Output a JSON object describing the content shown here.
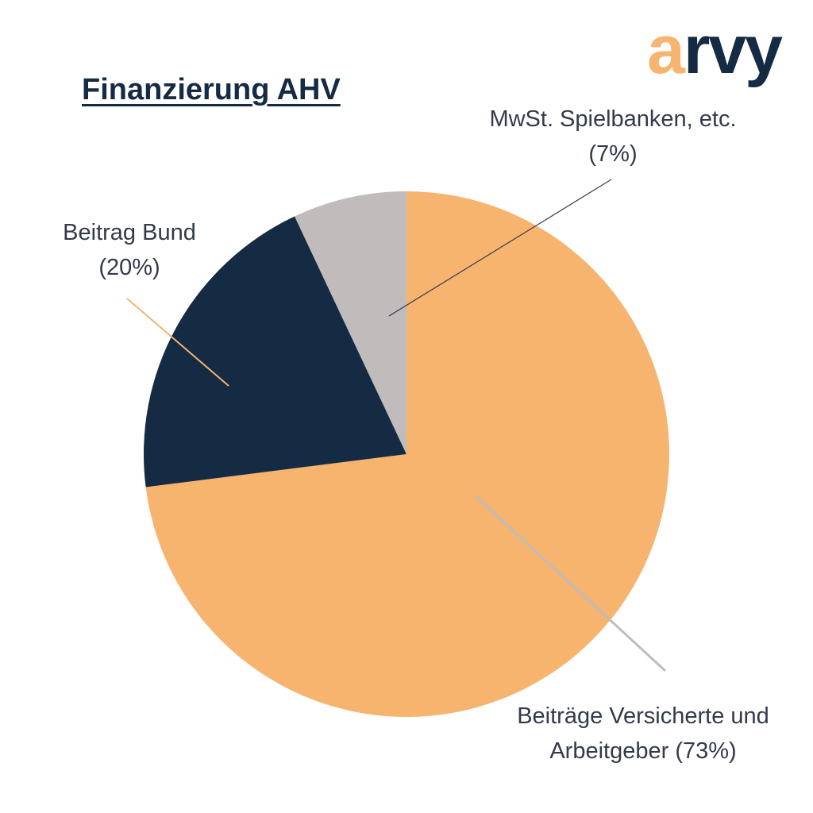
{
  "logo": {
    "parts": [
      "a",
      "rvy"
    ]
  },
  "chart_data": {
    "type": "pie",
    "title": "Finanzierung AHV",
    "categories": [
      "Beiträge Versicherte und Arbeitgeber",
      "Beitrag Bund",
      "MwSt. Spielbanken, etc."
    ],
    "values": [
      73,
      20,
      7
    ],
    "value_labels": [
      "(73%)",
      "(20%)",
      "(7%)"
    ],
    "colors": [
      "#f6b46e",
      "#152a43",
      "#c0bcbb"
    ]
  }
}
